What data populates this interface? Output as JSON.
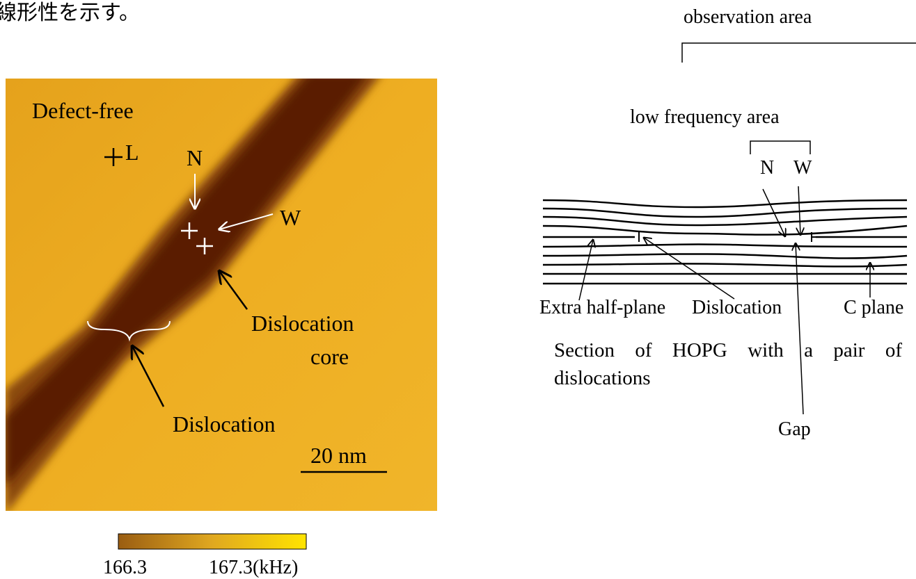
{
  "header": {
    "text": "線形性を示す。"
  },
  "afm_image": {
    "labels": {
      "defect_free": "Defect-free",
      "L": "L",
      "N": "N",
      "W": "W",
      "dislocation_core_line1": "Dislocation",
      "dislocation_core_line2": "core",
      "dislocation": "Dislocation",
      "scale_bar": "20 nm"
    }
  },
  "colorbar": {
    "min_label": "166.3",
    "max_label": "167.3(kHz)"
  },
  "schematic": {
    "observation_area": "observation area",
    "low_frequency_area": "low frequency area",
    "N": "N",
    "W": "W",
    "extra_half_plane": "Extra half-plane",
    "dislocation": "Dislocation",
    "c_plane": "C plane",
    "caption": "Section of HOPG with a pair of dislocations",
    "gap": "Gap"
  }
}
